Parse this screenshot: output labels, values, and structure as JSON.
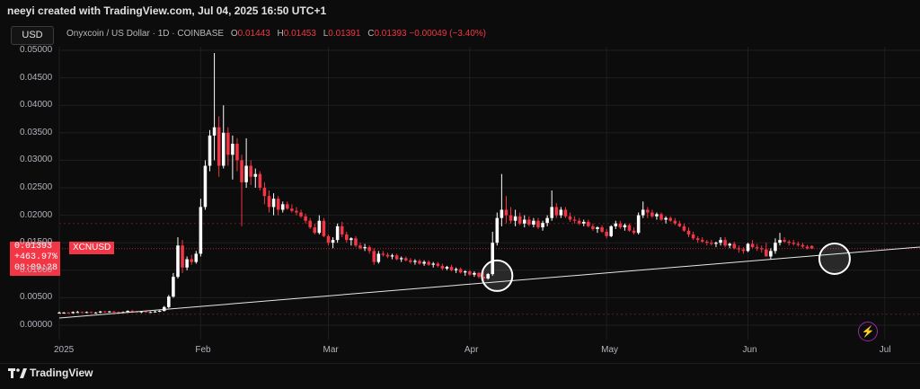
{
  "header": {
    "caption": "neeyi created with TradingView.com, Jul 04, 2025 16:50 UTC+1",
    "currency": "USD",
    "title": "Onyxcoin / US Dollar · 1D · COINBASE",
    "ohlc": {
      "o_label": "O",
      "o": "0.01443",
      "h_label": "H",
      "h": "0.01453",
      "l_label": "L",
      "l": "0.01391",
      "c_label": "C",
      "c": "0.01393",
      "change": "−0.00049 (−3.40%)"
    }
  },
  "badge": {
    "price": "0.01393",
    "change": "+463.97%",
    "countdown": "08:09:28",
    "symbol": "XCNUSD"
  },
  "footer": {
    "brand": "TradingView"
  },
  "colors": {
    "up": "#ffffff",
    "down": "#f23645",
    "background": "#0c0c0c",
    "grid": "#1e1e1e",
    "trendline": "#e8e8e8"
  },
  "icons": {
    "alert": "lightning-icon",
    "brand": "tradingview-logo-icon"
  },
  "chart_data": {
    "type": "candlestick",
    "title": "Onyxcoin / US Dollar · 1D · COINBASE",
    "ylim": [
      0.0,
      0.05
    ],
    "y_ticks": [
      "0.05000",
      "0.04500",
      "0.04000",
      "0.03500",
      "0.03000",
      "0.02500",
      "0.02000",
      "0.01500",
      "0.01000",
      "0.00500",
      "0.00000"
    ],
    "y_tick_values": [
      0.05,
      0.045,
      0.04,
      0.035,
      0.03,
      0.025,
      0.02,
      0.015,
      0.01,
      0.005,
      0.0
    ],
    "x_ticks": [
      {
        "label": "2025",
        "day": 0
      },
      {
        "label": "Feb",
        "day": 31
      },
      {
        "label": "Mar",
        "day": 59
      },
      {
        "label": "Apr",
        "day": 90
      },
      {
        "label": "May",
        "day": 120
      },
      {
        "label": "Jun",
        "day": 151
      },
      {
        "label": "Jul",
        "day": 181
      }
    ],
    "x_range_days": [
      0,
      184
    ],
    "dashed_levels": [
      0.0185,
      0.002
    ],
    "current_price": 0.01393,
    "trendline": [
      {
        "day": 0,
        "price": 0.0013
      },
      {
        "day": 184,
        "price": 0.0139
      }
    ],
    "circles": [
      {
        "day": 96,
        "price": 0.009
      },
      {
        "day": 170,
        "price": 0.0121
      }
    ],
    "candles_ohlc": [
      [
        0.0022,
        0.0025,
        0.0021,
        0.0023
      ],
      [
        0.0023,
        0.0024,
        0.0022,
        0.0023
      ],
      [
        0.0023,
        0.0024,
        0.0022,
        0.0022
      ],
      [
        0.0022,
        0.0025,
        0.0021,
        0.0024
      ],
      [
        0.0024,
        0.0026,
        0.0023,
        0.0024
      ],
      [
        0.0024,
        0.0025,
        0.0023,
        0.0023
      ],
      [
        0.0023,
        0.0025,
        0.0022,
        0.0024
      ],
      [
        0.0024,
        0.0025,
        0.0023,
        0.0023
      ],
      [
        0.0023,
        0.0024,
        0.0022,
        0.0023
      ],
      [
        0.0023,
        0.0026,
        0.0022,
        0.0025
      ],
      [
        0.0025,
        0.0026,
        0.0023,
        0.0024
      ],
      [
        0.0024,
        0.0026,
        0.0023,
        0.0025
      ],
      [
        0.0025,
        0.0026,
        0.0023,
        0.0024
      ],
      [
        0.0024,
        0.0025,
        0.0022,
        0.0023
      ],
      [
        0.0023,
        0.0025,
        0.0022,
        0.0024
      ],
      [
        0.0024,
        0.0027,
        0.0023,
        0.0026
      ],
      [
        0.0026,
        0.0028,
        0.0024,
        0.0025
      ],
      [
        0.0025,
        0.0026,
        0.0023,
        0.0024
      ],
      [
        0.0024,
        0.0026,
        0.0022,
        0.0025
      ],
      [
        0.0025,
        0.0026,
        0.0023,
        0.0024
      ],
      [
        0.0024,
        0.0025,
        0.0023,
        0.0024
      ],
      [
        0.0024,
        0.0026,
        0.0023,
        0.0025
      ],
      [
        0.0025,
        0.0027,
        0.0024,
        0.0026
      ],
      [
        0.0026,
        0.0035,
        0.0025,
        0.0033
      ],
      [
        0.0033,
        0.0055,
        0.0031,
        0.0052
      ],
      [
        0.0052,
        0.0095,
        0.005,
        0.0088
      ],
      [
        0.0088,
        0.016,
        0.0085,
        0.0145
      ],
      [
        0.0145,
        0.0155,
        0.0095,
        0.0105
      ],
      [
        0.0105,
        0.0125,
        0.01,
        0.012
      ],
      [
        0.012,
        0.0128,
        0.011,
        0.0115
      ],
      [
        0.0115,
        0.0135,
        0.0112,
        0.013
      ],
      [
        0.013,
        0.023,
        0.0125,
        0.0215
      ],
      [
        0.0215,
        0.03,
        0.021,
        0.029
      ],
      [
        0.029,
        0.0355,
        0.028,
        0.0345
      ],
      [
        0.0345,
        0.0495,
        0.03,
        0.036
      ],
      [
        0.036,
        0.038,
        0.027,
        0.029
      ],
      [
        0.029,
        0.04,
        0.0285,
        0.035
      ],
      [
        0.035,
        0.036,
        0.029,
        0.031
      ],
      [
        0.031,
        0.0345,
        0.0265,
        0.033
      ],
      [
        0.033,
        0.034,
        0.028,
        0.03
      ],
      [
        0.03,
        0.031,
        0.018,
        0.026
      ],
      [
        0.026,
        0.034,
        0.025,
        0.029
      ],
      [
        0.029,
        0.03,
        0.0255,
        0.027
      ],
      [
        0.027,
        0.0285,
        0.025,
        0.0275
      ],
      [
        0.0275,
        0.028,
        0.0245,
        0.025
      ],
      [
        0.025,
        0.026,
        0.022,
        0.0235
      ],
      [
        0.0235,
        0.0245,
        0.0205,
        0.0215
      ],
      [
        0.0215,
        0.024,
        0.02,
        0.023
      ],
      [
        0.023,
        0.0235,
        0.02,
        0.021
      ],
      [
        0.021,
        0.0225,
        0.0205,
        0.022
      ],
      [
        0.022,
        0.0225,
        0.021,
        0.0212
      ],
      [
        0.0212,
        0.022,
        0.0205,
        0.0208
      ],
      [
        0.0208,
        0.0215,
        0.02,
        0.0205
      ],
      [
        0.0205,
        0.021,
        0.0195,
        0.0198
      ],
      [
        0.0198,
        0.0203,
        0.0185,
        0.019
      ],
      [
        0.019,
        0.0195,
        0.0175,
        0.0178
      ],
      [
        0.0178,
        0.0185,
        0.0165,
        0.0168
      ],
      [
        0.0168,
        0.02,
        0.0165,
        0.019
      ],
      [
        0.019,
        0.0195,
        0.016,
        0.0162
      ],
      [
        0.0162,
        0.0165,
        0.0145,
        0.015
      ],
      [
        0.015,
        0.016,
        0.014,
        0.0155
      ],
      [
        0.0155,
        0.0185,
        0.015,
        0.018
      ],
      [
        0.018,
        0.0188,
        0.016,
        0.0165
      ],
      [
        0.0165,
        0.017,
        0.015,
        0.0155
      ],
      [
        0.0155,
        0.016,
        0.0145,
        0.0158
      ],
      [
        0.0158,
        0.0162,
        0.0142,
        0.0145
      ],
      [
        0.0145,
        0.015,
        0.0138,
        0.014
      ],
      [
        0.014,
        0.0148,
        0.0135,
        0.0142
      ],
      [
        0.0142,
        0.0145,
        0.013,
        0.0135
      ],
      [
        0.0135,
        0.014,
        0.011,
        0.0115
      ],
      [
        0.0115,
        0.0135,
        0.0112,
        0.013
      ],
      [
        0.013,
        0.0135,
        0.0125,
        0.0128
      ],
      [
        0.0128,
        0.0132,
        0.0122,
        0.0125
      ],
      [
        0.0125,
        0.013,
        0.012,
        0.0127
      ],
      [
        0.0127,
        0.013,
        0.0118,
        0.012
      ],
      [
        0.012,
        0.0125,
        0.0115,
        0.0122
      ],
      [
        0.0122,
        0.0125,
        0.0116,
        0.0118
      ],
      [
        0.0118,
        0.0122,
        0.0112,
        0.0115
      ],
      [
        0.0115,
        0.012,
        0.011,
        0.0117
      ],
      [
        0.0117,
        0.012,
        0.011,
        0.0112
      ],
      [
        0.0112,
        0.0118,
        0.0108,
        0.0115
      ],
      [
        0.0115,
        0.0118,
        0.0108,
        0.011
      ],
      [
        0.011,
        0.0115,
        0.0105,
        0.0112
      ],
      [
        0.0112,
        0.0115,
        0.0105,
        0.0108
      ],
      [
        0.0108,
        0.0112,
        0.01,
        0.0103
      ],
      [
        0.0103,
        0.0108,
        0.01,
        0.0106
      ],
      [
        0.0106,
        0.011,
        0.0098,
        0.01
      ],
      [
        0.01,
        0.0105,
        0.0095,
        0.0102
      ],
      [
        0.0102,
        0.0105,
        0.0094,
        0.0096
      ],
      [
        0.0096,
        0.01,
        0.009,
        0.0098
      ],
      [
        0.0098,
        0.01,
        0.009,
        0.0092
      ],
      [
        0.0092,
        0.0098,
        0.0088,
        0.0095
      ],
      [
        0.0095,
        0.0097,
        0.0085,
        0.0088
      ],
      [
        0.0088,
        0.01,
        0.008,
        0.0085
      ],
      [
        0.0085,
        0.0095,
        0.0083,
        0.0093
      ],
      [
        0.0093,
        0.017,
        0.009,
        0.015
      ],
      [
        0.015,
        0.0205,
        0.0145,
        0.0195
      ],
      [
        0.0195,
        0.0275,
        0.018,
        0.021
      ],
      [
        0.021,
        0.0235,
        0.0185,
        0.02
      ],
      [
        0.02,
        0.0215,
        0.0185,
        0.019
      ],
      [
        0.019,
        0.021,
        0.018,
        0.0198
      ],
      [
        0.0198,
        0.0205,
        0.0182,
        0.0185
      ],
      [
        0.0185,
        0.02,
        0.0178,
        0.0192
      ],
      [
        0.0192,
        0.0198,
        0.018,
        0.0183
      ],
      [
        0.0183,
        0.0195,
        0.0178,
        0.019
      ],
      [
        0.019,
        0.0195,
        0.0175,
        0.0178
      ],
      [
        0.0178,
        0.019,
        0.0172,
        0.0186
      ],
      [
        0.0186,
        0.02,
        0.018,
        0.0195
      ],
      [
        0.0195,
        0.0245,
        0.019,
        0.0215
      ],
      [
        0.0215,
        0.0222,
        0.0195,
        0.02
      ],
      [
        0.02,
        0.0215,
        0.0195,
        0.021
      ],
      [
        0.021,
        0.0215,
        0.0195,
        0.0198
      ],
      [
        0.0198,
        0.0205,
        0.0188,
        0.0192
      ],
      [
        0.0192,
        0.0198,
        0.0185,
        0.019
      ],
      [
        0.019,
        0.0195,
        0.0182,
        0.0185
      ],
      [
        0.0185,
        0.0192,
        0.018,
        0.0188
      ],
      [
        0.0188,
        0.0192,
        0.0178,
        0.018
      ],
      [
        0.018,
        0.0185,
        0.0172,
        0.0175
      ],
      [
        0.0175,
        0.018,
        0.0168,
        0.0178
      ],
      [
        0.0178,
        0.0182,
        0.0168,
        0.017
      ],
      [
        0.017,
        0.0175,
        0.0158,
        0.0162
      ],
      [
        0.0162,
        0.0182,
        0.016,
        0.018
      ],
      [
        0.018,
        0.019,
        0.0175,
        0.0185
      ],
      [
        0.0185,
        0.019,
        0.0175,
        0.0178
      ],
      [
        0.0178,
        0.0185,
        0.0172,
        0.0182
      ],
      [
        0.0182,
        0.0185,
        0.017,
        0.0172
      ],
      [
        0.0172,
        0.0178,
        0.0165,
        0.0168
      ],
      [
        0.0168,
        0.0205,
        0.0165,
        0.02
      ],
      [
        0.02,
        0.0225,
        0.0195,
        0.021
      ],
      [
        0.021,
        0.0215,
        0.0195,
        0.0205
      ],
      [
        0.0205,
        0.021,
        0.0195,
        0.0198
      ],
      [
        0.0198,
        0.0205,
        0.0192,
        0.0202
      ],
      [
        0.0202,
        0.0205,
        0.019,
        0.0192
      ],
      [
        0.0192,
        0.0198,
        0.0185,
        0.0195
      ],
      [
        0.0195,
        0.0198,
        0.0188,
        0.019
      ],
      [
        0.019,
        0.0195,
        0.0182,
        0.0185
      ],
      [
        0.0185,
        0.019,
        0.0178,
        0.018
      ],
      [
        0.018,
        0.0185,
        0.017,
        0.0172
      ],
      [
        0.0172,
        0.0178,
        0.016,
        0.0165
      ],
      [
        0.0165,
        0.017,
        0.0155,
        0.0158
      ],
      [
        0.0158,
        0.0162,
        0.015,
        0.0155
      ],
      [
        0.0155,
        0.016,
        0.015,
        0.0152
      ],
      [
        0.0152,
        0.0155,
        0.0145,
        0.015
      ],
      [
        0.015,
        0.0155,
        0.0145,
        0.0148
      ],
      [
        0.0148,
        0.0152,
        0.0142,
        0.015
      ],
      [
        0.015,
        0.016,
        0.0145,
        0.0155
      ],
      [
        0.0155,
        0.016,
        0.0142,
        0.0145
      ],
      [
        0.0145,
        0.015,
        0.014,
        0.0148
      ],
      [
        0.0148,
        0.0152,
        0.0138,
        0.014
      ],
      [
        0.014,
        0.0145,
        0.0132,
        0.0138
      ],
      [
        0.0138,
        0.0142,
        0.013,
        0.0135
      ],
      [
        0.0135,
        0.015,
        0.0133,
        0.0148
      ],
      [
        0.0148,
        0.0155,
        0.014,
        0.0142
      ],
      [
        0.0142,
        0.0148,
        0.0135,
        0.014
      ],
      [
        0.014,
        0.0145,
        0.0132,
        0.0138
      ],
      [
        0.0138,
        0.015,
        0.013,
        0.0125
      ],
      [
        0.0125,
        0.014,
        0.012,
        0.0135
      ],
      [
        0.0135,
        0.0158,
        0.013,
        0.015
      ],
      [
        0.015,
        0.0168,
        0.0145,
        0.0155
      ],
      [
        0.0155,
        0.016,
        0.015,
        0.0152
      ],
      [
        0.0152,
        0.0155,
        0.0145,
        0.015
      ],
      [
        0.015,
        0.0155,
        0.0145,
        0.0148
      ],
      [
        0.0148,
        0.0152,
        0.0143,
        0.0146
      ],
      [
        0.0146,
        0.015,
        0.014,
        0.0143
      ],
      [
        0.0143,
        0.0146,
        0.0138,
        0.014
      ],
      [
        0.01443,
        0.01453,
        0.01391,
        0.01393
      ]
    ]
  }
}
